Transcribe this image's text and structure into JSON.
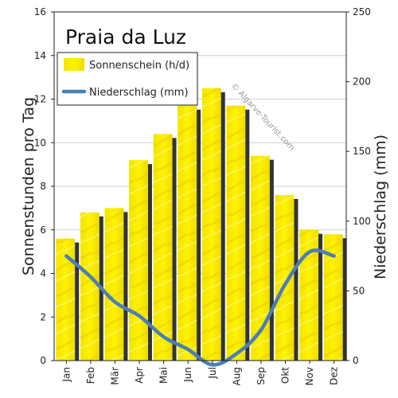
{
  "chart_data": {
    "type": "bar",
    "title": "Praia da Luz",
    "categories": [
      "Jan",
      "Feb",
      "Mär",
      "Apr",
      "Mai",
      "Jun",
      "Jul",
      "Aug",
      "Sep",
      "Okt",
      "Nov",
      "Dez"
    ],
    "series": [
      {
        "name": "Sonnenschein (h/d)",
        "type": "bar",
        "axis": "left",
        "values": [
          5.6,
          6.8,
          7.0,
          9.2,
          10.4,
          11.7,
          12.5,
          11.7,
          9.4,
          7.6,
          6.0,
          5.8
        ]
      },
      {
        "name": "Niederschlag (mm)",
        "type": "line",
        "axis": "right",
        "values": [
          75,
          60,
          42,
          32,
          17,
          8,
          -3,
          5,
          22,
          55,
          78,
          75
        ]
      }
    ],
    "ylabel": "Sonnenstunden pro Tag",
    "y2label": "Niederschlag (mm)",
    "ylim": [
      0,
      16
    ],
    "y2lim": [
      0,
      250
    ],
    "yticks": [
      0,
      2,
      4,
      6,
      8,
      10,
      12,
      14,
      16
    ],
    "y2ticks": [
      0,
      50,
      100,
      150,
      200,
      250
    ],
    "legend_position": "top-left",
    "colors": {
      "bar": "#f5ea00",
      "bar_shadow": "#333333",
      "line": "#4a7fb5"
    },
    "watermark": "© Algarve-Tourist.com"
  }
}
